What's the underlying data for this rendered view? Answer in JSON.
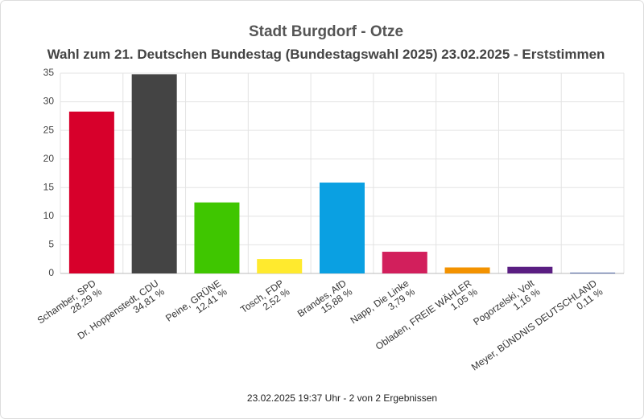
{
  "chart_data": {
    "type": "bar",
    "title": "Stadt Burgdorf - Otze",
    "subtitle": "Wahl zum 21. Deutschen Bundestag (Bundestagswahl 2025) 23.02.2025  - Erststimmen",
    "categories": [
      "Schamber, SPD",
      "Dr. Hoppenstedt, CDU",
      "Peine, GRÜNE",
      "Tosch, FDP",
      "Brandes, AfD",
      "Napp, Die Linke",
      "Obladen, FREIE WÄHLER",
      "Pogorzelski, Volt",
      "Meyer, BÜNDNIS DEUTSCHLAND"
    ],
    "values": [
      28.29,
      34.81,
      12.41,
      2.52,
      15.88,
      3.79,
      1.05,
      1.16,
      0.11
    ],
    "value_labels": [
      "28,29 %",
      "34,81 %",
      "12,41 %",
      "2,52 %",
      "15,88 %",
      "3,79 %",
      "1,05 %",
      "1,16 %",
      "0,11 %"
    ],
    "colors": [
      "#d7002b",
      "#444444",
      "#3fc600",
      "#ffea2e",
      "#0aa0e2",
      "#d21f5c",
      "#f39200",
      "#5a1e82",
      "#1e3a8a"
    ],
    "ylim": [
      0,
      35
    ],
    "yticks": [
      0,
      5,
      10,
      15,
      20,
      25,
      30,
      35
    ],
    "grid": true,
    "footer": "23.02.2025 19:37 Uhr - 2 von 2 Ergebnissen"
  }
}
